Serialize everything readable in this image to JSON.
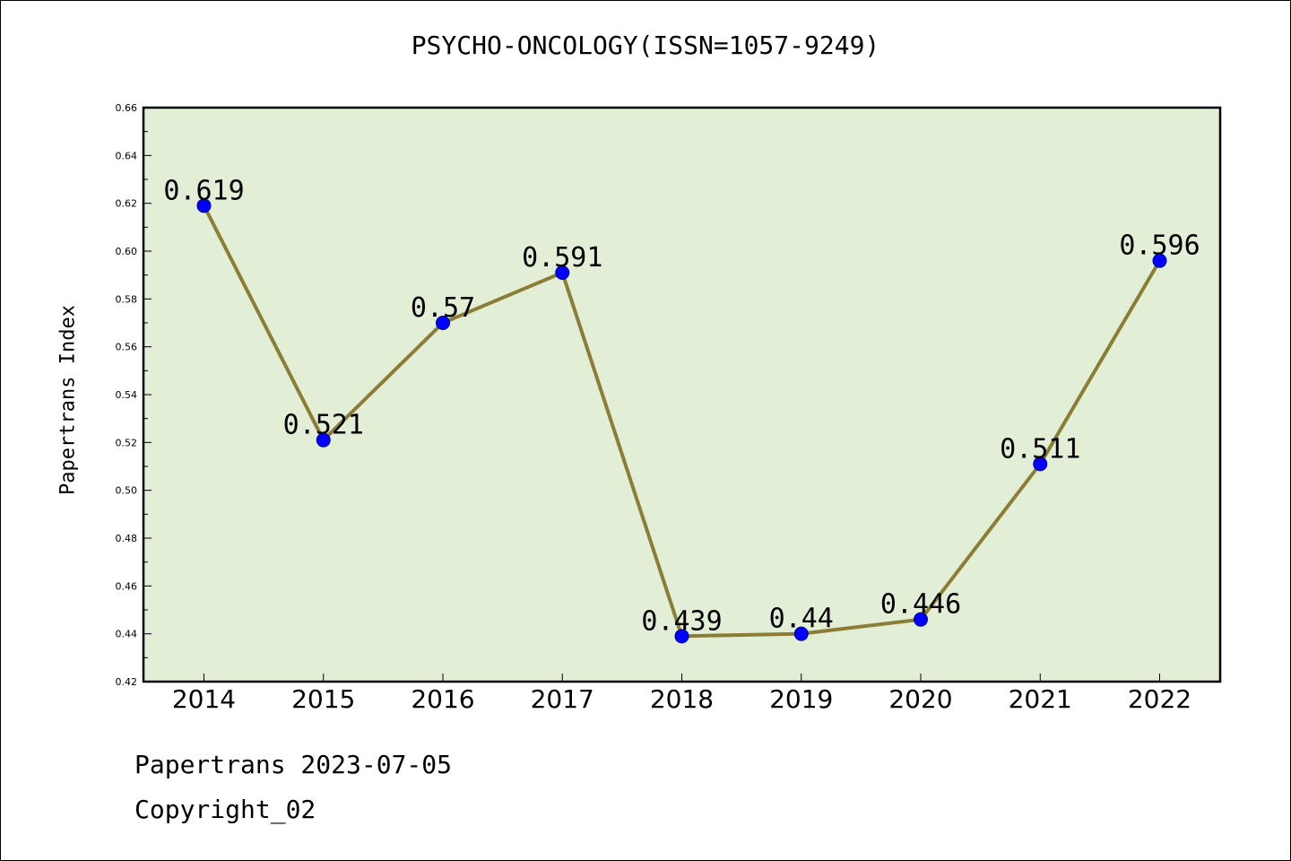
{
  "chart_data": {
    "type": "line",
    "title": "PSYCHO-ONCOLOGY(ISSN=1057-9249)",
    "xlabel": "",
    "ylabel": "Papertrans Index",
    "categories": [
      "2014",
      "2015",
      "2016",
      "2017",
      "2018",
      "2019",
      "2020",
      "2021",
      "2022"
    ],
    "values": [
      0.619,
      0.521,
      0.57,
      0.591,
      0.439,
      0.44,
      0.446,
      0.511,
      0.596
    ],
    "data_labels": [
      "0.619",
      "0.521",
      "0.57",
      "0.591",
      "0.439",
      "0.44",
      "0.446",
      "0.511",
      "0.596"
    ],
    "ylim": [
      0.42,
      0.66
    ],
    "yticks": [
      "0.42",
      "0.44",
      "0.46",
      "0.48",
      "0.50",
      "0.52",
      "0.54",
      "0.56",
      "0.58",
      "0.60",
      "0.62",
      "0.64",
      "0.66"
    ],
    "grid": false,
    "colors": {
      "plot_background": "#e2efd6",
      "line": "#8b7d35",
      "marker_fill": "#0000ff",
      "marker_edge": "#00008b"
    }
  },
  "footer": {
    "date_text": "Papertrans 2023-07-05",
    "copyright_text": "Copyright_02"
  }
}
